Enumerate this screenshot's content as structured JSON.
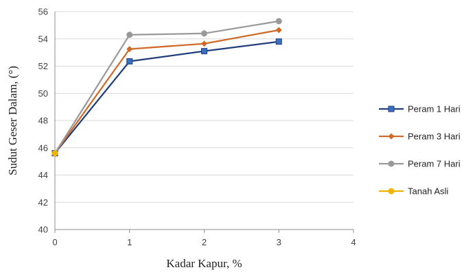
{
  "chart_data": {
    "type": "line",
    "xlabel": "Kadar Kapur, %",
    "ylabel": "Sudut Geser Dalam, (°)",
    "xlim": [
      0,
      4
    ],
    "ylim": [
      40,
      56
    ],
    "x_ticks": [
      "0",
      "1",
      "2",
      "3",
      "4"
    ],
    "y_ticks": [
      "40",
      "42",
      "44",
      "46",
      "48",
      "50",
      "52",
      "54",
      "56"
    ],
    "grid": "horizontal",
    "legend_position": "right",
    "series": [
      {
        "name": "Peram 1 Hari",
        "color": "#1f3d7a",
        "marker": "square",
        "x": [
          0,
          1,
          2,
          3
        ],
        "y": [
          45.6,
          52.35,
          53.1,
          53.8
        ]
      },
      {
        "name": "Peram 3 Hari",
        "color": "#d06a28",
        "marker": "diamond",
        "x": [
          0,
          1,
          2,
          3
        ],
        "y": [
          45.6,
          53.25,
          53.65,
          54.65
        ]
      },
      {
        "name": "Peram 7 Hari",
        "color": "#999999",
        "marker": "circle",
        "x": [
          0,
          1,
          2,
          3
        ],
        "y": [
          45.6,
          54.3,
          54.4,
          55.3
        ]
      },
      {
        "name": "Tanah Asli",
        "color": "#f0b400",
        "marker": "circle",
        "x": [
          0
        ],
        "y": [
          45.6
        ]
      }
    ]
  }
}
